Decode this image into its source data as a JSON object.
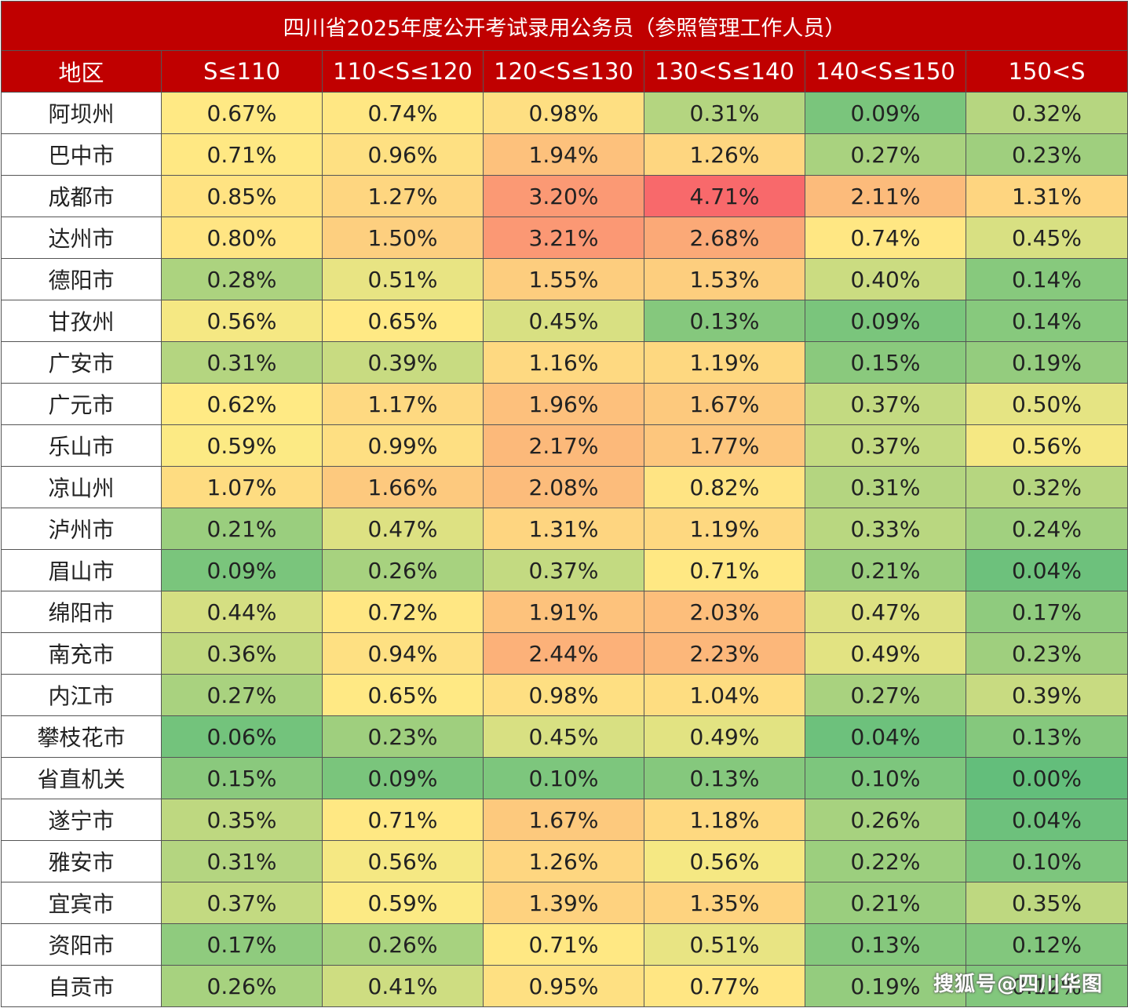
{
  "chart_data": {
    "type": "heatmap",
    "title": "四川省2025年度公开考试录用公务员（参照管理工作人员）",
    "row_header": "地区",
    "columns": [
      "S≤110",
      "110<S≤120",
      "120<S≤130",
      "130<S≤140",
      "140<S≤150",
      "150<S"
    ],
    "rows": [
      {
        "region": "阿坝州",
        "values": [
          "0.67%",
          "0.74%",
          "0.98%",
          "0.31%",
          "0.09%",
          "0.32%"
        ]
      },
      {
        "region": "巴中市",
        "values": [
          "0.71%",
          "0.96%",
          "1.94%",
          "1.26%",
          "0.27%",
          "0.23%"
        ]
      },
      {
        "region": "成都市",
        "values": [
          "0.85%",
          "1.27%",
          "3.20%",
          "4.71%",
          "2.11%",
          "1.31%"
        ]
      },
      {
        "region": "达州市",
        "values": [
          "0.80%",
          "1.50%",
          "3.21%",
          "2.68%",
          "0.74%",
          "0.45%"
        ]
      },
      {
        "region": "德阳市",
        "values": [
          "0.28%",
          "0.51%",
          "1.55%",
          "1.53%",
          "0.40%",
          "0.14%"
        ]
      },
      {
        "region": "甘孜州",
        "values": [
          "0.56%",
          "0.65%",
          "0.45%",
          "0.13%",
          "0.09%",
          "0.14%"
        ]
      },
      {
        "region": "广安市",
        "values": [
          "0.31%",
          "0.39%",
          "1.16%",
          "1.19%",
          "0.15%",
          "0.19%"
        ]
      },
      {
        "region": "广元市",
        "values": [
          "0.62%",
          "1.17%",
          "1.96%",
          "1.67%",
          "0.37%",
          "0.50%"
        ]
      },
      {
        "region": "乐山市",
        "values": [
          "0.59%",
          "0.99%",
          "2.17%",
          "1.77%",
          "0.37%",
          "0.56%"
        ]
      },
      {
        "region": "凉山州",
        "values": [
          "1.07%",
          "1.66%",
          "2.08%",
          "0.82%",
          "0.31%",
          "0.32%"
        ]
      },
      {
        "region": "泸州市",
        "values": [
          "0.21%",
          "0.47%",
          "1.31%",
          "1.19%",
          "0.33%",
          "0.24%"
        ]
      },
      {
        "region": "眉山市",
        "values": [
          "0.09%",
          "0.26%",
          "0.37%",
          "0.71%",
          "0.21%",
          "0.04%"
        ]
      },
      {
        "region": "绵阳市",
        "values": [
          "0.44%",
          "0.72%",
          "1.91%",
          "2.03%",
          "0.47%",
          "0.17%"
        ]
      },
      {
        "region": "南充市",
        "values": [
          "0.36%",
          "0.94%",
          "2.44%",
          "2.23%",
          "0.49%",
          "0.23%"
        ]
      },
      {
        "region": "内江市",
        "values": [
          "0.27%",
          "0.65%",
          "0.98%",
          "1.04%",
          "0.27%",
          "0.39%"
        ]
      },
      {
        "region": "攀枝花市",
        "values": [
          "0.06%",
          "0.23%",
          "0.45%",
          "0.49%",
          "0.04%",
          "0.13%"
        ]
      },
      {
        "region": "省直机关",
        "values": [
          "0.15%",
          "0.09%",
          "0.10%",
          "0.13%",
          "0.10%",
          "0.00%"
        ]
      },
      {
        "region": "遂宁市",
        "values": [
          "0.35%",
          "0.71%",
          "1.67%",
          "1.18%",
          "0.26%",
          "0.04%"
        ]
      },
      {
        "region": "雅安市",
        "values": [
          "0.31%",
          "0.56%",
          "1.26%",
          "0.56%",
          "0.22%",
          "0.10%"
        ]
      },
      {
        "region": "宜宾市",
        "values": [
          "0.37%",
          "0.59%",
          "1.39%",
          "1.35%",
          "0.21%",
          "0.35%"
        ]
      },
      {
        "region": "资阳市",
        "values": [
          "0.17%",
          "0.26%",
          "0.71%",
          "0.51%",
          "0.13%",
          "0.12%"
        ]
      },
      {
        "region": "自贡市",
        "values": [
          "0.26%",
          "0.41%",
          "0.95%",
          "0.77%",
          "0.19%",
          "0.12%"
        ]
      }
    ],
    "color_scale": {
      "low": "#63be7b",
      "mid": "#ffeb84",
      "high": "#f8696b"
    }
  },
  "colors": {
    "header_bg": "#c00000",
    "header_text": "#ffffff"
  },
  "watermark": "搜狐号@四川华图"
}
